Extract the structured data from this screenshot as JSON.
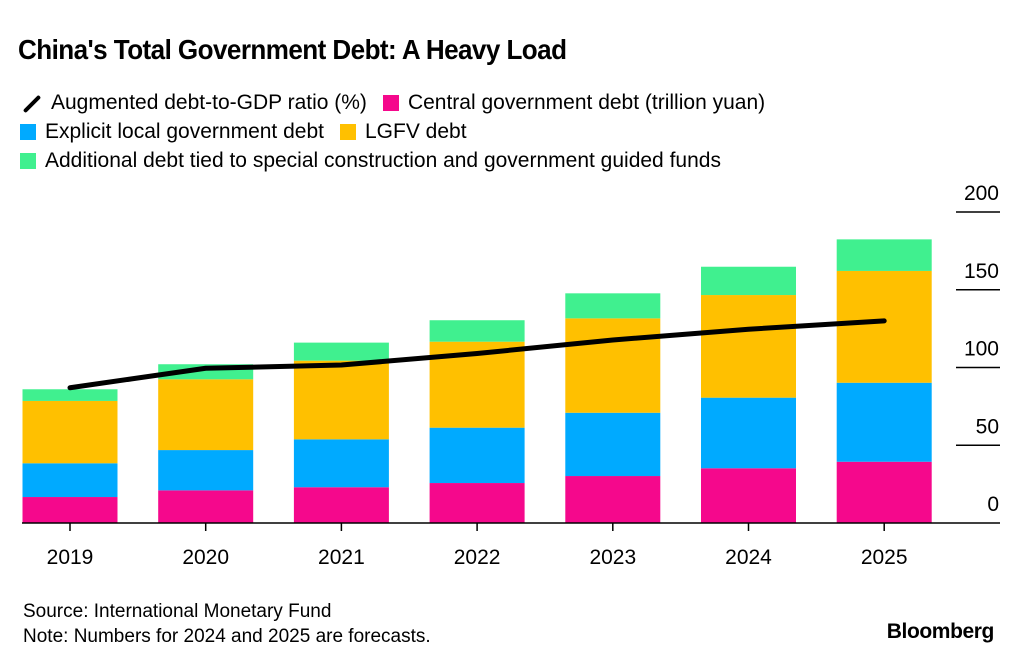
{
  "title": "China's Total Government Debt: A Heavy Load",
  "legend": [
    {
      "key": "ratio",
      "label": "Augmented debt-to-GDP ratio (%)",
      "type": "line",
      "color": "#000000"
    },
    {
      "key": "central",
      "label": "Central government debt (trillion yuan)",
      "type": "bar",
      "color": "#F5088C"
    },
    {
      "key": "explicit_local",
      "label": "Explicit local government debt",
      "type": "bar",
      "color": "#00AAFF"
    },
    {
      "key": "lgfv",
      "label": "LGFV debt",
      "type": "bar",
      "color": "#FFC000"
    },
    {
      "key": "additional",
      "label": "Additional debt tied to special construction and government guided funds",
      "type": "bar",
      "color": "#40F08F"
    }
  ],
  "footer": {
    "source": "Source: International Monetary Fund",
    "note": "Note: Numbers for 2024 and 2025 are forecasts.",
    "brand": "Bloomberg"
  },
  "chart_data": {
    "type": "bar",
    "stacked": true,
    "title": "China's Total Government Debt: A Heavy Load",
    "xlabel": "",
    "ylabel": "",
    "categories": [
      "2019",
      "2020",
      "2021",
      "2022",
      "2023",
      "2024",
      "2025"
    ],
    "ylim": [
      0,
      200
    ],
    "yticks": [
      0,
      50,
      100,
      150,
      200
    ],
    "y_axis_position": "right",
    "grid": false,
    "legend_position": "top",
    "series": [
      {
        "name": "Central government debt (trillion yuan)",
        "type": "bar",
        "color": "#F5088C",
        "values": [
          16.7,
          21.0,
          23.0,
          25.7,
          30.2,
          35.2,
          39.4
        ]
      },
      {
        "name": "Explicit local government debt",
        "type": "bar",
        "color": "#00AAFF",
        "values": [
          21.7,
          25.9,
          30.8,
          35.6,
          40.7,
          45.4,
          50.8
        ]
      },
      {
        "name": "LGFV debt",
        "type": "bar",
        "color": "#FFC000",
        "values": [
          40.1,
          45.5,
          50.6,
          55.3,
          60.7,
          66.0,
          71.9
        ]
      },
      {
        "name": "Additional debt tied to special construction and government guided funds",
        "type": "bar",
        "color": "#40F08F",
        "values": [
          7.5,
          9.7,
          11.6,
          13.8,
          16.1,
          18.2,
          20.3
        ]
      },
      {
        "name": "Augmented debt-to-GDP ratio (%)",
        "type": "line",
        "color": "#000000",
        "values": [
          87,
          99.5,
          101.6,
          109,
          117.7,
          124.6,
          130
        ]
      }
    ],
    "forecast_categories": [
      "2024",
      "2025"
    ]
  }
}
